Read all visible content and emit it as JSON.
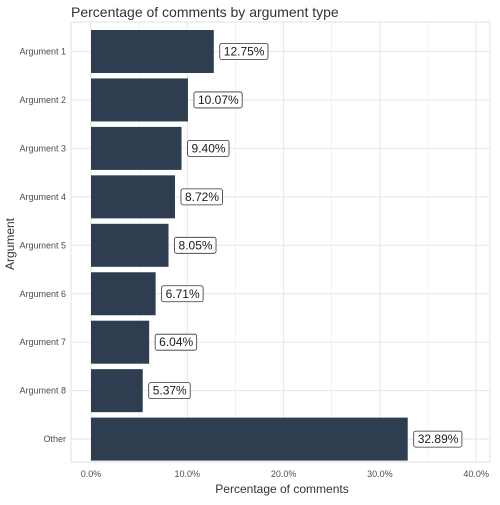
{
  "chart_data": {
    "type": "bar",
    "orientation": "horizontal",
    "title": "Percentage of comments by argument type",
    "xlabel": "Percentage of comments",
    "ylabel": "Argument",
    "categories": [
      "Argument 1",
      "Argument 2",
      "Argument 3",
      "Argument 4",
      "Argument 5",
      "Argument 6",
      "Argument 7",
      "Argument 8",
      "Other"
    ],
    "values": [
      12.75,
      10.07,
      9.4,
      8.72,
      8.05,
      6.71,
      6.04,
      5.37,
      32.89
    ],
    "data_labels": [
      "12.75%",
      "10.07%",
      "9.40%",
      "8.72%",
      "8.05%",
      "6.71%",
      "6.04%",
      "5.37%",
      "32.89%"
    ],
    "x_ticks": [
      0,
      10,
      20,
      30,
      40
    ],
    "x_tick_labels": [
      "0.0%",
      "10.0%",
      "20.0%",
      "30.0%",
      "40.0%"
    ],
    "xlim": [
      0,
      40
    ],
    "grid": true,
    "colors": {
      "bar": "#2e3e50",
      "grid": "#e6e6e6",
      "text": "#4d4d4d",
      "title": "#333333"
    }
  }
}
